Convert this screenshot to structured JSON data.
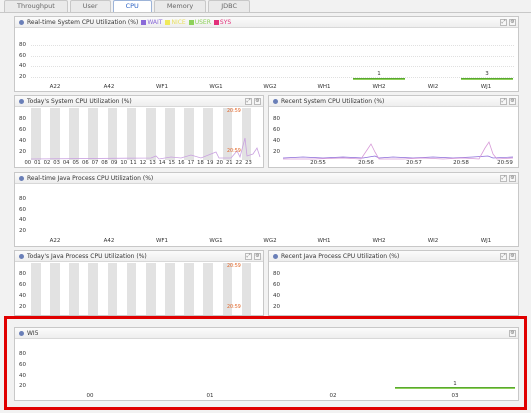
{
  "tabs": [
    {
      "label": "Throughput",
      "active": false
    },
    {
      "label": "User",
      "active": false
    },
    {
      "label": "CPU",
      "active": true
    },
    {
      "label": "Memory",
      "active": false
    },
    {
      "label": "JDBC",
      "active": false
    }
  ],
  "y_ticks": [
    "80",
    "60",
    "40",
    "20"
  ],
  "servers": [
    "A22",
    "A42",
    "WF1",
    "WG1",
    "WG2",
    "WH1",
    "WH2",
    "WI2",
    "WJ1"
  ],
  "realtime_system": {
    "title": "Real-time System CPU Utilization (%)",
    "legend": [
      {
        "label": "WAIT",
        "color": "#8a6ad8"
      },
      {
        "label": "NICE",
        "color": "#f0ea5a"
      },
      {
        "label": "USER",
        "color": "#8ed15a"
      },
      {
        "label": "SYS",
        "color": "#e2307a"
      }
    ],
    "bars": [
      {
        "server": "WH2",
        "value": 1,
        "label": "1"
      },
      {
        "server": "WJ1",
        "value": 3,
        "label": "3"
      }
    ]
  },
  "today_system": {
    "title": "Today's System CPU Utilization (%)",
    "hours": [
      "00",
      "01",
      "02",
      "03",
      "04",
      "05",
      "06",
      "07",
      "08",
      "09",
      "10",
      "11",
      "12",
      "13",
      "14",
      "15",
      "16",
      "17",
      "18",
      "19",
      "20",
      "21",
      "22",
      "23"
    ],
    "time_top": "20:59",
    "time_bottom": "20:59"
  },
  "recent_system": {
    "title": "Recent System CPU Utilization (%)",
    "times": [
      "20:55",
      "20:56",
      "20:57",
      "20:58",
      "20:59"
    ]
  },
  "realtime_java": {
    "title": "Real-time Java Process CPU Utilization (%)"
  },
  "today_java": {
    "title": "Today's Java Process CPU Utilization (%)",
    "time_top": "20:59",
    "time_bottom": "20:59"
  },
  "recent_java": {
    "title": "Recent Java Process CPU Utilization (%)"
  },
  "wi5": {
    "title": "WI5",
    "cores": [
      "00",
      "01",
      "02",
      "03"
    ],
    "bars": [
      {
        "core": "03",
        "value": 1,
        "label": "1"
      }
    ]
  },
  "colors": {
    "highlight": "#e00000",
    "accent": "#2b62c4",
    "user_bar": "#8ed15a",
    "wait_line": "#8a6ad8",
    "sys_line": "#e2307a"
  }
}
